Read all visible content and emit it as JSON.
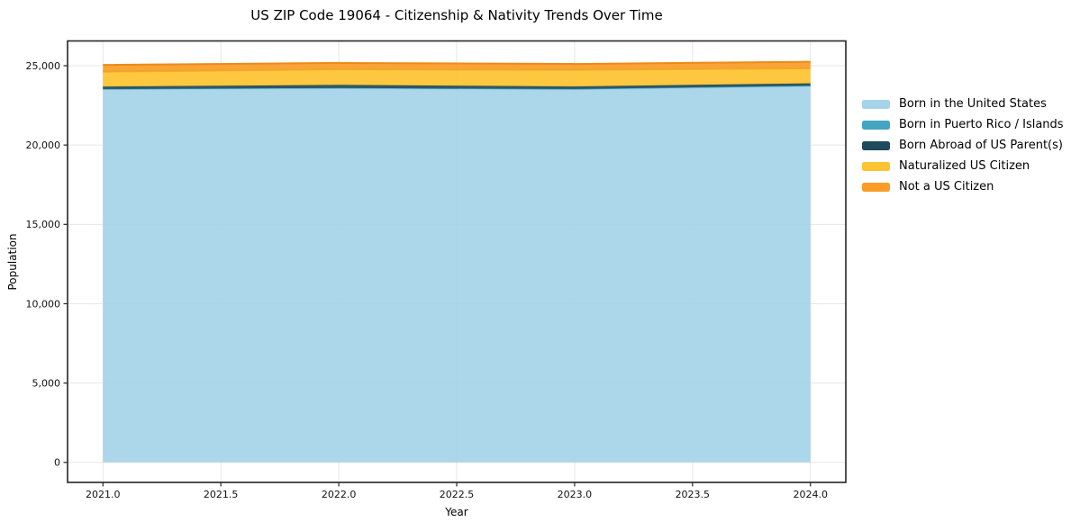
{
  "chart_data": {
    "type": "area",
    "stacked": true,
    "title": "US ZIP Code 19064 - Citizenship & Nativity Trends Over Time",
    "xlabel": "Year",
    "ylabel": "Population",
    "x": [
      2021,
      2022,
      2023,
      2024
    ],
    "xlim": [
      2020.85,
      2024.15
    ],
    "ylim": [
      -1260,
      26560
    ],
    "xticks": {
      "values": [
        2021.0,
        2021.5,
        2022.0,
        2022.5,
        2023.0,
        2023.5,
        2024.0
      ],
      "labels": [
        "2021.0",
        "2021.5",
        "2022.0",
        "2022.5",
        "2023.0",
        "2023.5",
        "2024.0"
      ]
    },
    "yticks": {
      "values": [
        0,
        5000,
        10000,
        15000,
        20000,
        25000
      ],
      "labels": [
        "0",
        "5,000",
        "10,000",
        "15,000",
        "20,000",
        "25,000"
      ]
    },
    "grid": true,
    "legend_position": "right-of-plot",
    "series": [
      {
        "name": "Born in the United States",
        "fill": "#a5d3e8",
        "edge": "#9bcde5",
        "edge_width": 1.5,
        "values": [
          23500,
          23570,
          23500,
          23700
        ]
      },
      {
        "name": "Born in Puerto Rico / Islands",
        "fill": "#44a5c2",
        "edge": "#44a5c2",
        "edge_width": 1.0,
        "values": [
          30,
          30,
          30,
          40
        ]
      },
      {
        "name": "Born Abroad of US Parent(s)",
        "fill": "#1f4a5c",
        "edge": "#1f4a5c",
        "edge_width": 1.2,
        "values": [
          150,
          190,
          160,
          150
        ]
      },
      {
        "name": "Naturalized US Citizen",
        "fill": "#fdc330",
        "edge": "#f3ae1f",
        "edge_width": 1.8,
        "values": [
          940,
          975,
          1045,
          940
        ]
      },
      {
        "name": "Not a US Citizen",
        "fill": "#f89c27",
        "edge": "#ee8a15",
        "edge_width": 2.0,
        "values": [
          430,
          410,
          375,
          420
        ]
      }
    ]
  },
  "style": {
    "background": "#ffffff",
    "grid_color": "#e7e7e7",
    "spine_color": "#262626",
    "tick_color": "#262626",
    "text_color": "#000000",
    "fill_opacity": 0.92
  }
}
